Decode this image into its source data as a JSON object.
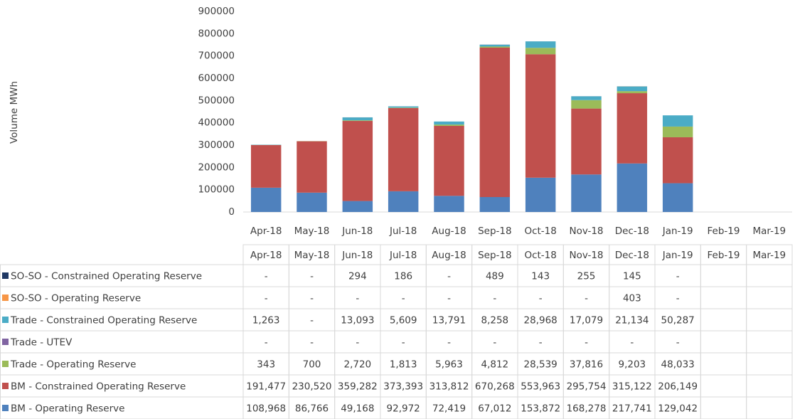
{
  "chart_data": {
    "type": "stacked-bar",
    "y_label": "Volume MWh",
    "categories": [
      "Apr-18",
      "May-18",
      "Jun-18",
      "Jul-18",
      "Aug-18",
      "Sep-18",
      "Oct-18",
      "Nov-18",
      "Dec-18",
      "Jan-19",
      "Feb-19",
      "Mar-19"
    ],
    "ylim": [
      0,
      900000
    ],
    "yticks": [
      0,
      100000,
      200000,
      300000,
      400000,
      500000,
      600000,
      700000,
      800000,
      900000
    ],
    "grid": false,
    "series": [
      {
        "name": "SO-SO - Constrained Operating Reserve",
        "color": "#1f3864",
        "values": [
          0,
          0,
          294,
          186,
          0,
          489,
          143,
          255,
          145,
          0,
          null,
          null
        ],
        "value_labels": [
          "-",
          "-",
          "294",
          "186",
          "-",
          "489",
          "143",
          "255",
          "145",
          "-",
          null,
          null
        ]
      },
      {
        "name": "SO-SO - Operating Reserve",
        "color": "#f79646",
        "values": [
          0,
          0,
          0,
          0,
          0,
          0,
          0,
          0,
          403,
          0,
          null,
          null
        ],
        "value_labels": [
          "-",
          "-",
          "-",
          "-",
          "-",
          "-",
          "-",
          "-",
          "403",
          "-",
          null,
          null
        ]
      },
      {
        "name": "Trade - Constrained Operating Reserve",
        "color": "#4bacc6",
        "values": [
          1263,
          0,
          13093,
          5609,
          13791,
          8258,
          28968,
          17079,
          21134,
          50287,
          null,
          null
        ],
        "value_labels": [
          "1,263",
          "-",
          "13,093",
          "5,609",
          "13,791",
          "8,258",
          "28,968",
          "17,079",
          "21,134",
          "50,287",
          null,
          null
        ]
      },
      {
        "name": "Trade - UTEV",
        "color": "#8064a2",
        "values": [
          0,
          0,
          0,
          0,
          0,
          0,
          0,
          0,
          0,
          0,
          null,
          null
        ],
        "value_labels": [
          "-",
          "-",
          "-",
          "-",
          "-",
          "-",
          "-",
          "-",
          "-",
          "-",
          null,
          null
        ]
      },
      {
        "name": "Trade - Operating Reserve",
        "color": "#9bbb59",
        "values": [
          343,
          700,
          2720,
          1813,
          5963,
          4812,
          28539,
          37816,
          9203,
          48033,
          null,
          null
        ],
        "value_labels": [
          "343",
          "700",
          "2,720",
          "1,813",
          "5,963",
          "4,812",
          "28,539",
          "37,816",
          "9,203",
          "48,033",
          null,
          null
        ]
      },
      {
        "name": "BM - Constrained Operating Reserve",
        "color": "#c0504d",
        "values": [
          191477,
          230520,
          359282,
          373393,
          313812,
          670268,
          553963,
          295754,
          315122,
          206149,
          null,
          null
        ],
        "value_labels": [
          "191,477",
          "230,520",
          "359,282",
          "373,393",
          "313,812",
          "670,268",
          "553,963",
          "295,754",
          "315,122",
          "206,149",
          null,
          null
        ]
      },
      {
        "name": "BM - Operating Reserve",
        "color": "#4f81bd",
        "values": [
          108968,
          86766,
          49168,
          92972,
          72419,
          67012,
          153872,
          168278,
          217741,
          129042,
          null,
          null
        ],
        "value_labels": [
          "108,968",
          "86,766",
          "49,168",
          "92,972",
          "72,419",
          "67,012",
          "153,872",
          "168,278",
          "217,741",
          "129,042",
          null,
          null
        ]
      }
    ]
  }
}
